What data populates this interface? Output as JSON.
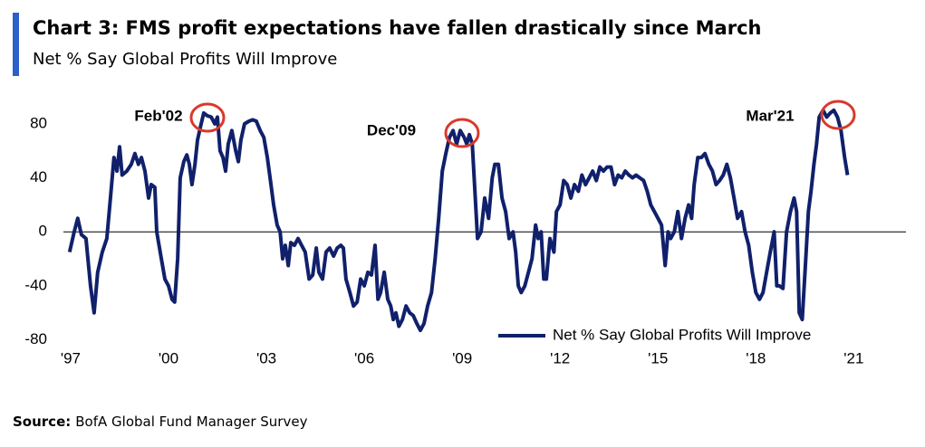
{
  "chart_data": {
    "type": "line",
    "title": "Chart 3: FMS profit expectations have fallen drastically since March",
    "subtitle": "Net % Say Global Profits Will Improve",
    "source_label": "Source:",
    "source": "BofA Global Fund Manager Survey",
    "annotations": [
      "Feb'02",
      "Dec'09",
      "Mar'21"
    ],
    "annotation_color": "#d9392b",
    "xlim": [
      1996.78,
      2022.6
    ],
    "xticks": [
      {
        "value": 1997,
        "label": "'97"
      },
      {
        "value": 2000,
        "label": "'00"
      },
      {
        "value": 2003,
        "label": "'03"
      },
      {
        "value": 2006,
        "label": "'06"
      },
      {
        "value": 2009,
        "label": "'09"
      },
      {
        "value": 2012,
        "label": "'12"
      },
      {
        "value": 2015,
        "label": "'15"
      },
      {
        "value": 2018,
        "label": "'18"
      },
      {
        "value": 2021,
        "label": "'21"
      }
    ],
    "ylim": [
      -83,
      98
    ],
    "yticks": [
      -80,
      -40,
      0,
      40,
      80
    ],
    "grid": false,
    "zero_line": true,
    "legend": "bottom-right",
    "x": [
      1996.97,
      1997.11,
      1997.22,
      1997.33,
      1997.47,
      1997.61,
      1997.72,
      1997.83,
      1997.97,
      1998.11,
      1998.22,
      1998.33,
      1998.42,
      1998.5,
      1998.58,
      1998.72,
      1998.86,
      1998.97,
      1999.08,
      1999.17,
      1999.28,
      1999.39,
      1999.47,
      1999.58,
      1999.64,
      1999.78,
      1999.89,
      2000.0,
      2000.11,
      2000.19,
      2000.28,
      2000.36,
      2000.47,
      2000.56,
      2000.64,
      2000.72,
      2000.81,
      2000.89,
      2001.0,
      2001.08,
      2001.19,
      2001.31,
      2001.42,
      2001.5,
      2001.58,
      2001.67,
      2001.75,
      2001.83,
      2001.94,
      2002.06,
      2002.14,
      2002.22,
      2002.33,
      2002.47,
      2002.58,
      2002.69,
      2002.81,
      2002.92,
      2003.03,
      2003.14,
      2003.22,
      2003.33,
      2003.42,
      2003.5,
      2003.58,
      2003.67,
      2003.75,
      2003.86,
      2003.97,
      2004.08,
      2004.19,
      2004.31,
      2004.42,
      2004.53,
      2004.61,
      2004.72,
      2004.83,
      2004.94,
      2005.06,
      2005.17,
      2005.28,
      2005.36,
      2005.44,
      2005.56,
      2005.67,
      2005.78,
      2005.89,
      2006.0,
      2006.11,
      2006.22,
      2006.33,
      2006.42,
      2006.5,
      2006.61,
      2006.72,
      2006.81,
      2006.89,
      2006.97,
      2007.06,
      2007.17,
      2007.28,
      2007.39,
      2007.5,
      2007.61,
      2007.72,
      2007.83,
      2007.94,
      2008.06,
      2008.17,
      2008.28,
      2008.39,
      2008.5,
      2008.61,
      2008.72,
      2008.83,
      2008.94,
      2009.06,
      2009.14,
      2009.22,
      2009.31,
      2009.39,
      2009.47,
      2009.58,
      2009.69,
      2009.81,
      2009.92,
      2010.0,
      2010.11,
      2010.22,
      2010.33,
      2010.44,
      2010.56,
      2010.64,
      2010.72,
      2010.81,
      2010.92,
      2011.03,
      2011.14,
      2011.25,
      2011.33,
      2011.42,
      2011.5,
      2011.58,
      2011.69,
      2011.81,
      2011.89,
      2012.0,
      2012.11,
      2012.22,
      2012.33,
      2012.44,
      2012.56,
      2012.67,
      2012.78,
      2012.89,
      2013.0,
      2013.11,
      2013.22,
      2013.33,
      2013.44,
      2013.56,
      2013.67,
      2013.78,
      2013.89,
      2014.0,
      2014.11,
      2014.22,
      2014.33,
      2014.44,
      2014.56,
      2014.67,
      2014.78,
      2014.89,
      2015.0,
      2015.11,
      2015.22,
      2015.31,
      2015.39,
      2015.5,
      2015.61,
      2015.72,
      2015.83,
      2015.94,
      2016.03,
      2016.11,
      2016.22,
      2016.33,
      2016.44,
      2016.56,
      2016.67,
      2016.78,
      2016.89,
      2017.0,
      2017.11,
      2017.22,
      2017.33,
      2017.44,
      2017.56,
      2017.67,
      2017.78,
      2017.89,
      2018.0,
      2018.11,
      2018.22,
      2018.33,
      2018.44,
      2018.56,
      2018.64,
      2018.72,
      2018.83,
      2018.94,
      2019.06,
      2019.17,
      2019.25,
      2019.33,
      2019.42,
      2019.53,
      2019.61,
      2019.69,
      2019.78,
      2019.86,
      2019.94,
      2020.06,
      2020.17,
      2020.28,
      2020.39,
      2020.5,
      2020.61,
      2020.72,
      2020.81
    ],
    "series": [
      {
        "name": "Net % Say Global Profits Will Improve",
        "color": "#10206b",
        "values": [
          -15,
          0,
          10,
          -2,
          -5,
          -40,
          -60,
          -30,
          -15,
          -5,
          25,
          55,
          45,
          63,
          42,
          45,
          50,
          58,
          50,
          55,
          45,
          25,
          35,
          33,
          0,
          -20,
          -35,
          -40,
          -50,
          -52,
          -20,
          40,
          52,
          57,
          50,
          35,
          50,
          68,
          80,
          88,
          86,
          85,
          80,
          85,
          60,
          55,
          45,
          65,
          75,
          60,
          52,
          68,
          80,
          82,
          83,
          82,
          75,
          70,
          55,
          35,
          20,
          5,
          0,
          -20,
          -10,
          -25,
          -8,
          -10,
          -5,
          -10,
          -15,
          -35,
          -32,
          -12,
          -30,
          -35,
          -15,
          -12,
          -18,
          -12,
          -10,
          -12,
          -35,
          -45,
          -55,
          -52,
          -35,
          -40,
          -30,
          -32,
          -10,
          -50,
          -45,
          -30,
          -50,
          -55,
          -65,
          -60,
          -70,
          -65,
          -55,
          -60,
          -62,
          -68,
          -73,
          -68,
          -55,
          -45,
          -20,
          10,
          45,
          58,
          70,
          75,
          65,
          75,
          70,
          65,
          72,
          65,
          30,
          -5,
          0,
          25,
          10,
          40,
          50,
          50,
          25,
          15,
          -5,
          0,
          -15,
          -40,
          -45,
          -40,
          -30,
          -20,
          5,
          -5,
          0,
          -35,
          -35,
          -5,
          -15,
          15,
          20,
          38,
          35,
          25,
          35,
          30,
          42,
          35,
          40,
          45,
          38,
          48,
          45,
          48,
          48,
          35,
          42,
          40,
          45,
          42,
          40,
          42,
          40,
          38,
          30,
          20,
          15,
          10,
          5,
          -25,
          0,
          -5,
          0,
          15,
          -5,
          10,
          20,
          10,
          35,
          55,
          55,
          58,
          50,
          45,
          35,
          38,
          42,
          50,
          40,
          25,
          10,
          15,
          0,
          -10,
          -30,
          -45,
          -50,
          -45,
          -30,
          -15,
          0,
          -40,
          -40,
          -42,
          0,
          15,
          25,
          15,
          -60,
          -65,
          -20,
          15,
          30,
          50,
          65,
          85,
          90,
          85,
          88,
          90,
          85,
          75,
          55,
          42
        ]
      }
    ]
  }
}
